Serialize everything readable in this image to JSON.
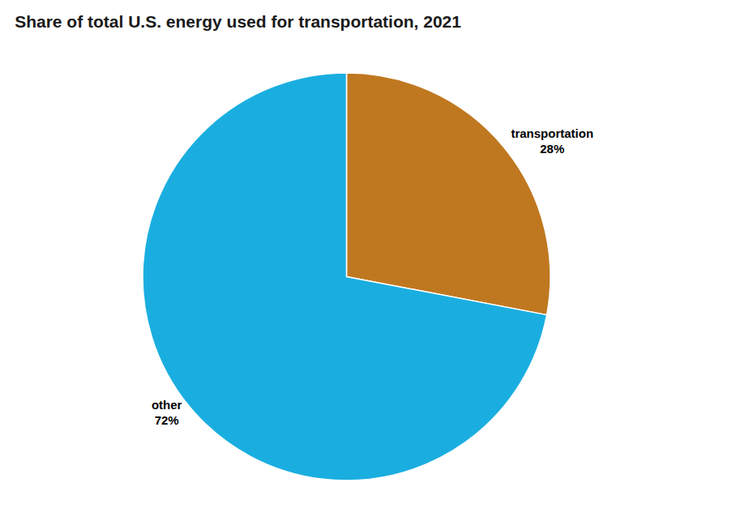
{
  "chart_data": {
    "type": "pie",
    "title": "Share of total U.S. energy used for transportation, 2021",
    "categories": [
      "transportation",
      "other"
    ],
    "values": [
      28,
      72
    ],
    "value_labels": [
      "28%",
      "72%"
    ],
    "colors": [
      "#c07820",
      "#1aaee0"
    ],
    "data_labels": true
  }
}
